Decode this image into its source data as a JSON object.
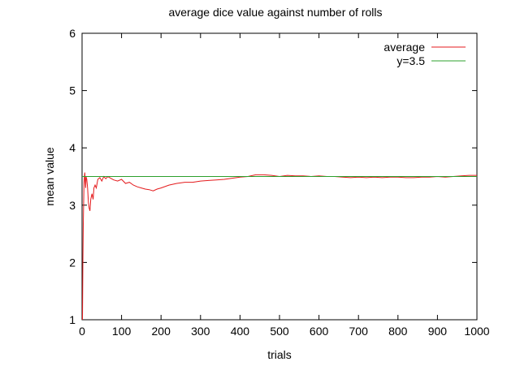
{
  "chart_data": {
    "type": "line",
    "title": "average dice value against number of rolls",
    "xlabel": "trials",
    "ylabel": "mean value",
    "xlim": [
      0,
      1000
    ],
    "ylim": [
      1,
      6
    ],
    "x_ticks": [
      0,
      100,
      200,
      300,
      400,
      500,
      600,
      700,
      800,
      900,
      1000
    ],
    "y_ticks": [
      1,
      2,
      3,
      4,
      5,
      6
    ],
    "grid": false,
    "legend_position": "top-right",
    "series": [
      {
        "name": "average",
        "color": "#e41a1c",
        "x": [
          1,
          2,
          3,
          4,
          5,
          6,
          7,
          8,
          9,
          10,
          12,
          14,
          16,
          18,
          20,
          22,
          25,
          28,
          30,
          33,
          36,
          40,
          45,
          50,
          55,
          60,
          65,
          70,
          80,
          90,
          100,
          110,
          120,
          130,
          140,
          150,
          160,
          170,
          180,
          190,
          200,
          220,
          240,
          260,
          280,
          300,
          320,
          340,
          360,
          380,
          400,
          420,
          440,
          460,
          480,
          500,
          520,
          540,
          560,
          580,
          600,
          620,
          640,
          660,
          680,
          700,
          720,
          740,
          760,
          780,
          800,
          820,
          840,
          860,
          880,
          900,
          920,
          940,
          960,
          980,
          1000
        ],
        "y": [
          1.0,
          2.0,
          2.67,
          3.0,
          3.4,
          3.5,
          3.57,
          3.4,
          3.3,
          3.5,
          3.45,
          3.3,
          3.05,
          2.95,
          2.9,
          3.1,
          3.2,
          3.1,
          3.3,
          3.35,
          3.3,
          3.45,
          3.48,
          3.42,
          3.5,
          3.46,
          3.5,
          3.48,
          3.44,
          3.42,
          3.45,
          3.38,
          3.4,
          3.35,
          3.32,
          3.3,
          3.28,
          3.27,
          3.25,
          3.28,
          3.3,
          3.35,
          3.38,
          3.4,
          3.4,
          3.42,
          3.43,
          3.44,
          3.45,
          3.47,
          3.49,
          3.5,
          3.53,
          3.53,
          3.52,
          3.5,
          3.52,
          3.51,
          3.51,
          3.5,
          3.51,
          3.5,
          3.5,
          3.49,
          3.48,
          3.49,
          3.48,
          3.49,
          3.48,
          3.49,
          3.49,
          3.48,
          3.48,
          3.49,
          3.49,
          3.5,
          3.49,
          3.5,
          3.51,
          3.52,
          3.52
        ]
      },
      {
        "name": "y=3.5",
        "color": "#2ca02c",
        "x": [
          0,
          1000
        ],
        "y": [
          3.5,
          3.5
        ]
      }
    ]
  }
}
